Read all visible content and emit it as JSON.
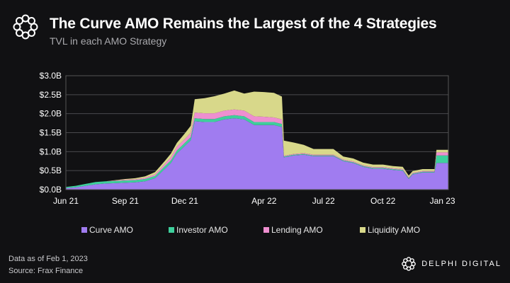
{
  "header": {
    "title": "The Curve AMO Remains the Largest of the 4 Strategies",
    "subtitle": "TVL in each AMO Strategy"
  },
  "footer": {
    "data_as_of": "Data as of Feb 1, 2023",
    "source": "Source: Frax Finance",
    "brand": "DELPHI DIGITAL"
  },
  "chart_data": {
    "type": "area",
    "stacked": true,
    "title": "The Curve AMO Remains the Largest of the 4 Strategies",
    "subtitle": "TVL in each AMO Strategy",
    "xlabel": "",
    "ylabel": "",
    "ylim": [
      0,
      3.0
    ],
    "y_unit": "USD billions",
    "yticks": [
      "$0.0B",
      "$0.5B",
      "$1.0B",
      "$1.5B",
      "$2.0B",
      "$2.5B",
      "$3.0B"
    ],
    "ytick_values": [
      0,
      0.5,
      1.0,
      1.5,
      2.0,
      2.5,
      3.0
    ],
    "xticks": [
      "Jun 21",
      "Sep 21",
      "Dec 21",
      "Apr 22",
      "Jul 22",
      "Oct 22",
      "Jan 23"
    ],
    "xtick_months": [
      0,
      3,
      6,
      10,
      13,
      16,
      19
    ],
    "grid": true,
    "legend_position": "bottom",
    "x_months": [
      0,
      0.5,
      1,
      1.5,
      2,
      2.5,
      3,
      3.5,
      4,
      4.5,
      5,
      5.3,
      5.6,
      6,
      6.3,
      6.5,
      7,
      7.5,
      8,
      8.5,
      9,
      9.5,
      10,
      10.5,
      10.9,
      11,
      11.5,
      12,
      12.5,
      13,
      13.5,
      14,
      14.5,
      15,
      15.5,
      16,
      16.5,
      17,
      17.3,
      17.5,
      18,
      18.6,
      18.7,
      19.3
    ],
    "series": [
      {
        "name": "Curve AMO",
        "color": "#a07cf0",
        "values": [
          0.04,
          0.06,
          0.1,
          0.14,
          0.16,
          0.17,
          0.18,
          0.19,
          0.22,
          0.3,
          0.55,
          0.7,
          0.95,
          1.15,
          1.3,
          1.8,
          1.78,
          1.78,
          1.85,
          1.88,
          1.85,
          1.7,
          1.7,
          1.7,
          1.65,
          0.85,
          0.9,
          0.92,
          0.88,
          0.88,
          0.88,
          0.75,
          0.7,
          0.6,
          0.55,
          0.55,
          0.52,
          0.5,
          0.28,
          0.4,
          0.45,
          0.45,
          0.7,
          0.7
        ]
      },
      {
        "name": "Investor AMO",
        "color": "#3ecf9c",
        "values": [
          0.03,
          0.04,
          0.05,
          0.06,
          0.06,
          0.06,
          0.06,
          0.06,
          0.06,
          0.06,
          0.07,
          0.07,
          0.08,
          0.08,
          0.08,
          0.08,
          0.08,
          0.08,
          0.08,
          0.08,
          0.08,
          0.08,
          0.08,
          0.08,
          0.08,
          0.02,
          0.02,
          0.02,
          0.02,
          0.02,
          0.02,
          0.02,
          0.02,
          0.02,
          0.02,
          0.02,
          0.02,
          0.02,
          0.02,
          0.02,
          0.02,
          0.02,
          0.2,
          0.2
        ]
      },
      {
        "name": "Lending AMO",
        "color": "#ee8fd0",
        "values": [
          0.0,
          0.0,
          0.0,
          0.0,
          0.0,
          0.01,
          0.02,
          0.02,
          0.03,
          0.04,
          0.06,
          0.08,
          0.1,
          0.1,
          0.12,
          0.15,
          0.15,
          0.15,
          0.15,
          0.15,
          0.15,
          0.15,
          0.14,
          0.12,
          0.12,
          0.02,
          0.02,
          0.02,
          0.02,
          0.02,
          0.02,
          0.02,
          0.02,
          0.02,
          0.02,
          0.02,
          0.02,
          0.02,
          0.02,
          0.02,
          0.02,
          0.02,
          0.08,
          0.08
        ]
      },
      {
        "name": "Liquidity AMO",
        "color": "#d8d88a",
        "values": [
          0.0,
          0.0,
          0.0,
          0.0,
          0.0,
          0.01,
          0.02,
          0.03,
          0.04,
          0.06,
          0.08,
          0.1,
          0.1,
          0.15,
          0.18,
          0.35,
          0.4,
          0.45,
          0.45,
          0.5,
          0.45,
          0.65,
          0.65,
          0.65,
          0.6,
          0.4,
          0.3,
          0.22,
          0.15,
          0.15,
          0.15,
          0.08,
          0.08,
          0.07,
          0.07,
          0.07,
          0.06,
          0.06,
          0.05,
          0.05,
          0.05,
          0.05,
          0.07,
          0.07
        ]
      }
    ]
  }
}
